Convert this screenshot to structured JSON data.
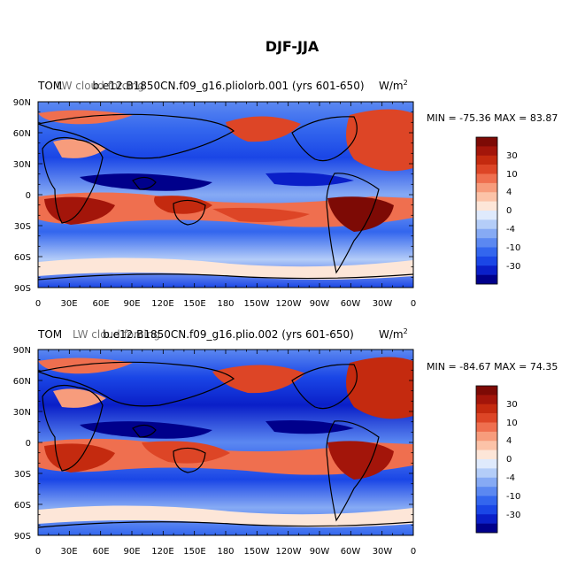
{
  "title": "DJF-JJA",
  "colorbar": {
    "colors": [
      "#00008b",
      "#0a1fc8",
      "#1a46e6",
      "#3366ee",
      "#5b88f1",
      "#86aaf4",
      "#b4cdf8",
      "#dfeafc",
      "#fde6d8",
      "#fcc3a8",
      "#f79c7c",
      "#ef6f4f",
      "#dd4526",
      "#c42a0f",
      "#a3150a",
      "#7d0a05"
    ],
    "tick_labels": [
      "30",
      "10",
      "4",
      "0",
      "-4",
      "-10",
      "-30"
    ]
  },
  "chart_data": [
    {
      "type": "heatmap",
      "left_title": "TOM",
      "center_title": "b.e12.B1850CN.f09_g16.pliolorb.001 (yrs 601-650)",
      "overlay_text": "LW cloud forcing",
      "units": "W/m",
      "units_exp": "2",
      "stats": "MIN = -75.36 MAX =  83.87",
      "min": -75.36,
      "max": 83.87,
      "y_tick_labels": [
        "90N",
        "60N",
        "30N",
        "0",
        "30S",
        "60S",
        "90S"
      ],
      "x_tick_labels": [
        "0",
        "30E",
        "60E",
        "90E",
        "120E",
        "150E",
        "180",
        "150W",
        "120W",
        "90W",
        "60W",
        "30W",
        "0"
      ],
      "xlim": [
        0,
        360
      ],
      "ylim": [
        -90,
        90
      ]
    },
    {
      "type": "heatmap",
      "left_title": "TOM",
      "center_title": "b.e12.B1850CN.f09_g16.plio.002 (yrs 601-650)",
      "overlay_text": "LW cloud forcing",
      "units": "W/m",
      "units_exp": "2",
      "stats": "MIN = -84.67 MAX =  74.35",
      "min": -84.67,
      "max": 74.35,
      "y_tick_labels": [
        "90N",
        "60N",
        "30N",
        "0",
        "30S",
        "60S",
        "90S"
      ],
      "x_tick_labels": [
        "0",
        "30E",
        "60E",
        "90E",
        "120E",
        "150E",
        "180",
        "150W",
        "120W",
        "90W",
        "60W",
        "30W",
        "0"
      ],
      "xlim": [
        0,
        360
      ],
      "ylim": [
        -90,
        90
      ]
    }
  ]
}
